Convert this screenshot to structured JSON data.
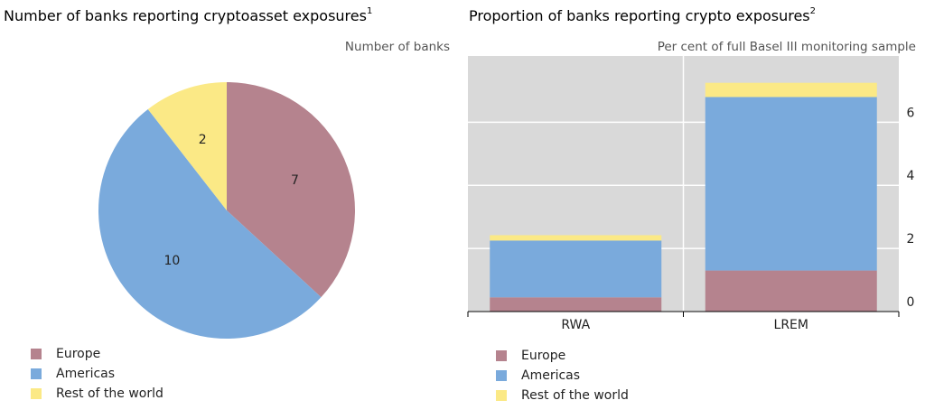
{
  "chart_data": [
    {
      "type": "pie",
      "title": "Number of banks reporting cryptoasset exposures",
      "title_note": "1",
      "subtitle": "Number of banks",
      "categories": [
        "Europe",
        "Americas",
        "Rest of the world"
      ],
      "values": [
        7,
        10,
        2
      ],
      "colors": [
        "#b5838e",
        "#7aaadc",
        "#fbe986"
      ],
      "legend": "bottom-left"
    },
    {
      "type": "stacked-bar",
      "title": "Proportion of banks reporting crypto exposures",
      "title_note": "2",
      "subtitle": "Per cent of full Basel III monitoring sample",
      "categories": [
        "RWA",
        "LREM"
      ],
      "series": [
        {
          "name": "Europe",
          "color": "#b5838e",
          "values": [
            0.45,
            1.3
          ]
        },
        {
          "name": "Americas",
          "color": "#7aaadc",
          "values": [
            1.8,
            5.5
          ]
        },
        {
          "name": "Rest of the world",
          "color": "#fbe986",
          "values": [
            0.17,
            0.45
          ]
        }
      ],
      "ylim": [
        0,
        8.1
      ],
      "yticks": [
        0,
        2,
        4,
        6
      ],
      "grid": true,
      "legend": "bottom-left"
    }
  ]
}
